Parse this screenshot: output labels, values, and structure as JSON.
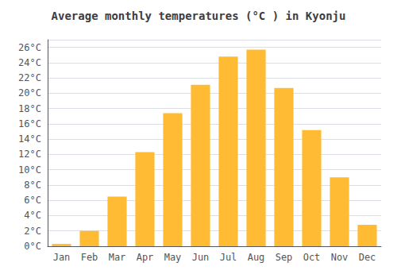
{
  "chart_data": {
    "type": "bar",
    "title": "Average monthly temperatures (°C ) in Kyonju",
    "categories": [
      "Jan",
      "Feb",
      "Mar",
      "Apr",
      "May",
      "Jun",
      "Jul",
      "Aug",
      "Sep",
      "Oct",
      "Nov",
      "Dec"
    ],
    "values": [
      0.3,
      2.0,
      6.5,
      12.3,
      17.4,
      21.1,
      24.8,
      25.7,
      20.7,
      15.2,
      9.0,
      2.8
    ],
    "color": "#FFBB33",
    "ylim": [
      0,
      27
    ],
    "yticks": [
      {
        "value": 0,
        "label": "0°C"
      },
      {
        "value": 2,
        "label": "2°C"
      },
      {
        "value": 4,
        "label": "4°C"
      },
      {
        "value": 6,
        "label": "6°C"
      },
      {
        "value": 8,
        "label": "8°C"
      },
      {
        "value": 10,
        "label": "10°C"
      },
      {
        "value": 12,
        "label": "12°C"
      },
      {
        "value": 14,
        "label": "14°C"
      },
      {
        "value": 16,
        "label": "16°C"
      },
      {
        "value": 18,
        "label": "18°C"
      },
      {
        "value": 20,
        "label": "20°C"
      },
      {
        "value": 22,
        "label": "22°C"
      },
      {
        "value": 24,
        "label": "24°C"
      },
      {
        "value": 26,
        "label": "26°C"
      }
    ],
    "grid": true
  }
}
